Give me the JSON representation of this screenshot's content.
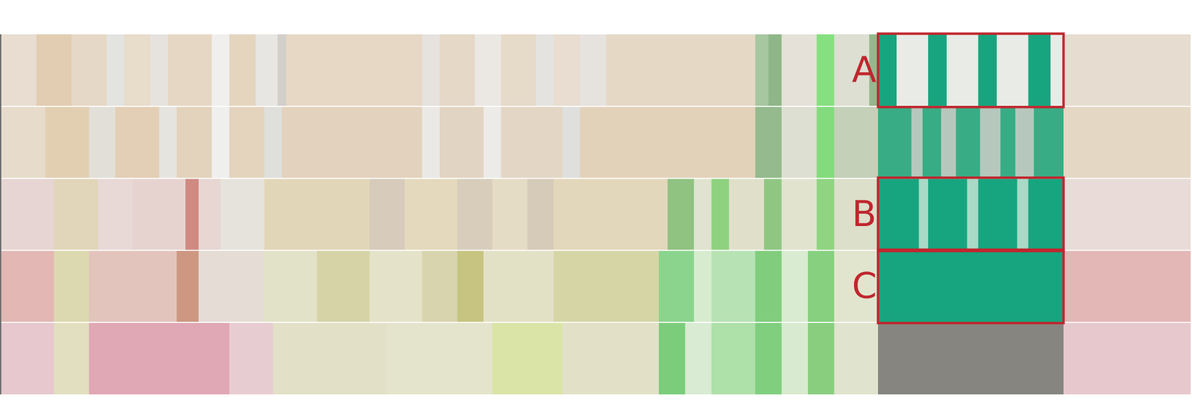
{
  "rows": [
    {
      "id": "row-1",
      "base": "#e8ddd0",
      "bands": [
        {
          "from": 0.0,
          "to": 0.04,
          "color": "#e8ddd0"
        },
        {
          "from": 0.04,
          "to": 0.08,
          "color": "#e2cdb2"
        },
        {
          "from": 0.08,
          "to": 0.12,
          "color": "#e6d8c6"
        },
        {
          "from": 0.12,
          "to": 0.14,
          "color": "#e3e3e0"
        },
        {
          "from": 0.14,
          "to": 0.17,
          "color": "#e8dccb"
        },
        {
          "from": 0.17,
          "to": 0.19,
          "color": "#e6e3de"
        },
        {
          "from": 0.19,
          "to": 0.24,
          "color": "#e6d7c4"
        },
        {
          "from": 0.24,
          "to": 0.26,
          "color": "#f0efed"
        },
        {
          "from": 0.26,
          "to": 0.29,
          "color": "#e5d5bf"
        },
        {
          "from": 0.29,
          "to": 0.315,
          "color": "#e8e6e2"
        },
        {
          "from": 0.315,
          "to": 0.325,
          "color": "#d3cfca"
        },
        {
          "from": 0.325,
          "to": 0.48,
          "color": "#e6d8c4"
        },
        {
          "from": 0.48,
          "to": 0.5,
          "color": "#e6e2de"
        },
        {
          "from": 0.5,
          "to": 0.54,
          "color": "#e5d8c7"
        },
        {
          "from": 0.54,
          "to": 0.57,
          "color": "#ebe7e3"
        },
        {
          "from": 0.57,
          "to": 0.61,
          "color": "#e6dac9"
        },
        {
          "from": 0.61,
          "to": 0.63,
          "color": "#e5e3e0"
        },
        {
          "from": 0.63,
          "to": 0.66,
          "color": "#e8ddd0"
        },
        {
          "from": 0.66,
          "to": 0.69,
          "color": "#e6e2de"
        },
        {
          "from": 0.69,
          "to": 0.86,
          "color": "#e5d9c6"
        },
        {
          "from": 0.86,
          "to": 0.875,
          "color": "#a7c7a0"
        },
        {
          "from": 0.875,
          "to": 0.89,
          "color": "#8fb688"
        },
        {
          "from": 0.89,
          "to": 0.93,
          "color": "#e5e1d8"
        },
        {
          "from": 0.93,
          "to": 0.95,
          "color": "#86e080"
        },
        {
          "from": 0.95,
          "to": 0.99,
          "color": "#dcdfd2"
        },
        {
          "from": 0.99,
          "to": 1.0,
          "color": "#93b98d"
        }
      ]
    },
    {
      "id": "row-2",
      "base": "#e6dcce",
      "bands": [
        {
          "from": 0.0,
          "to": 0.05,
          "color": "#e7dccb"
        },
        {
          "from": 0.05,
          "to": 0.1,
          "color": "#e2cfb2"
        },
        {
          "from": 0.1,
          "to": 0.13,
          "color": "#e2dfd8"
        },
        {
          "from": 0.13,
          "to": 0.18,
          "color": "#e3cfb5"
        },
        {
          "from": 0.18,
          "to": 0.2,
          "color": "#e6e4df"
        },
        {
          "from": 0.2,
          "to": 0.24,
          "color": "#e3d3bc"
        },
        {
          "from": 0.24,
          "to": 0.26,
          "color": "#efefee"
        },
        {
          "from": 0.26,
          "to": 0.3,
          "color": "#e4d4be"
        },
        {
          "from": 0.3,
          "to": 0.32,
          "color": "#dfe0dc"
        },
        {
          "from": 0.32,
          "to": 0.48,
          "color": "#e3d2bd"
        },
        {
          "from": 0.48,
          "to": 0.5,
          "color": "#ebe9e6"
        },
        {
          "from": 0.5,
          "to": 0.55,
          "color": "#e2d4c2"
        },
        {
          "from": 0.55,
          "to": 0.57,
          "color": "#ecebe8"
        },
        {
          "from": 0.57,
          "to": 0.64,
          "color": "#e3d6c4"
        },
        {
          "from": 0.64,
          "to": 0.66,
          "color": "#dfe0dd"
        },
        {
          "from": 0.66,
          "to": 0.86,
          "color": "#e3d2ba"
        },
        {
          "from": 0.86,
          "to": 0.89,
          "color": "#94ba8d"
        },
        {
          "from": 0.89,
          "to": 0.93,
          "color": "#dddfd3"
        },
        {
          "from": 0.93,
          "to": 0.95,
          "color": "#83db7d"
        },
        {
          "from": 0.95,
          "to": 1.0,
          "color": "#c4d0b7"
        }
      ]
    },
    {
      "id": "row-3",
      "base": "#e9e0d4",
      "bands": [
        {
          "from": 0.0,
          "to": 0.06,
          "color": "#e6d5d2"
        },
        {
          "from": 0.06,
          "to": 0.11,
          "color": "#e1d6b9"
        },
        {
          "from": 0.11,
          "to": 0.15,
          "color": "#e8d8d6"
        },
        {
          "from": 0.15,
          "to": 0.21,
          "color": "#e6d3cf"
        },
        {
          "from": 0.21,
          "to": 0.225,
          "color": "#d08a82"
        },
        {
          "from": 0.225,
          "to": 0.25,
          "color": "#e7d6d2"
        },
        {
          "from": 0.25,
          "to": 0.3,
          "color": "#e6e3dc"
        },
        {
          "from": 0.3,
          "to": 0.42,
          "color": "#e2d6b8"
        },
        {
          "from": 0.42,
          "to": 0.46,
          "color": "#d7ccbb"
        },
        {
          "from": 0.46,
          "to": 0.52,
          "color": "#e4d9bd"
        },
        {
          "from": 0.52,
          "to": 0.56,
          "color": "#d8cdbb"
        },
        {
          "from": 0.56,
          "to": 0.6,
          "color": "#e5dcc5"
        },
        {
          "from": 0.6,
          "to": 0.63,
          "color": "#d6cbb8"
        },
        {
          "from": 0.63,
          "to": 0.76,
          "color": "#e3d7bb"
        },
        {
          "from": 0.76,
          "to": 0.79,
          "color": "#90c281"
        },
        {
          "from": 0.79,
          "to": 0.81,
          "color": "#dfe3cf"
        },
        {
          "from": 0.81,
          "to": 0.83,
          "color": "#8ed27f"
        },
        {
          "from": 0.83,
          "to": 0.87,
          "color": "#e0e0ca"
        },
        {
          "from": 0.87,
          "to": 0.89,
          "color": "#8fc782"
        },
        {
          "from": 0.89,
          "to": 0.93,
          "color": "#e2e3cf"
        },
        {
          "from": 0.93,
          "to": 0.95,
          "color": "#90d481"
        },
        {
          "from": 0.95,
          "to": 1.0,
          "color": "#dcdfc9"
        }
      ]
    },
    {
      "id": "row-4",
      "base": "#e6e2cd",
      "bands": [
        {
          "from": 0.0,
          "to": 0.06,
          "color": "#e2b7b4"
        },
        {
          "from": 0.06,
          "to": 0.1,
          "color": "#dcd9b0"
        },
        {
          "from": 0.1,
          "to": 0.2,
          "color": "#e2c4bc"
        },
        {
          "from": 0.2,
          "to": 0.225,
          "color": "#cd9782"
        },
        {
          "from": 0.225,
          "to": 0.3,
          "color": "#e6dcd6"
        },
        {
          "from": 0.3,
          "to": 0.36,
          "color": "#e2e2c8"
        },
        {
          "from": 0.36,
          "to": 0.42,
          "color": "#d6d3a7"
        },
        {
          "from": 0.42,
          "to": 0.48,
          "color": "#e4e2c8"
        },
        {
          "from": 0.48,
          "to": 0.52,
          "color": "#d8d5ae"
        },
        {
          "from": 0.52,
          "to": 0.55,
          "color": "#c6c480"
        },
        {
          "from": 0.55,
          "to": 0.63,
          "color": "#e2e1c6"
        },
        {
          "from": 0.63,
          "to": 0.75,
          "color": "#d6d5a6"
        },
        {
          "from": 0.75,
          "to": 0.79,
          "color": "#8bd48d"
        },
        {
          "from": 0.79,
          "to": 0.81,
          "color": "#d7eccf"
        },
        {
          "from": 0.81,
          "to": 0.86,
          "color": "#b7e2b3"
        },
        {
          "from": 0.86,
          "to": 0.89,
          "color": "#7fcd7d"
        },
        {
          "from": 0.89,
          "to": 0.92,
          "color": "#d9ebd1"
        },
        {
          "from": 0.92,
          "to": 0.95,
          "color": "#86d07f"
        },
        {
          "from": 0.95,
          "to": 1.0,
          "color": "#e1e5ce"
        }
      ]
    },
    {
      "id": "row-5",
      "base": "#e5e3d0",
      "bands": [
        {
          "from": 0.0,
          "to": 0.06,
          "color": "#e6c8ce"
        },
        {
          "from": 0.06,
          "to": 0.1,
          "color": "#e1dfbf"
        },
        {
          "from": 0.1,
          "to": 0.26,
          "color": "#e0a7b4"
        },
        {
          "from": 0.26,
          "to": 0.31,
          "color": "#e7cdd2"
        },
        {
          "from": 0.31,
          "to": 0.44,
          "color": "#e2e0c6"
        },
        {
          "from": 0.44,
          "to": 0.56,
          "color": "#e4e4cc"
        },
        {
          "from": 0.56,
          "to": 0.64,
          "color": "#d9e4a6"
        },
        {
          "from": 0.64,
          "to": 0.75,
          "color": "#e2e1c7"
        },
        {
          "from": 0.75,
          "to": 0.78,
          "color": "#7bcd7b"
        },
        {
          "from": 0.78,
          "to": 0.81,
          "color": "#d9ebd2"
        },
        {
          "from": 0.81,
          "to": 0.86,
          "color": "#aee0a9"
        },
        {
          "from": 0.86,
          "to": 0.89,
          "color": "#7fcf7e"
        },
        {
          "from": 0.89,
          "to": 0.92,
          "color": "#d8ead0"
        },
        {
          "from": 0.92,
          "to": 0.95,
          "color": "#89ce7f"
        },
        {
          "from": 0.95,
          "to": 1.0,
          "color": "#e0e3cd"
        }
      ]
    }
  ],
  "highlight_rows": [
    {
      "id": "row-1",
      "fill": "#17a57f",
      "stripes": [
        [
          0.0,
          0.1
        ],
        [
          0.27,
          0.37
        ],
        [
          0.54,
          0.64
        ],
        [
          0.81,
          0.93
        ]
      ],
      "stripe_bg": "#e9ebe6"
    },
    {
      "id": "row-2",
      "fill": "#38ad85",
      "stripes": [
        [
          0.0,
          0.18
        ],
        [
          0.24,
          0.34
        ],
        [
          0.42,
          0.55
        ],
        [
          0.66,
          0.74
        ],
        [
          0.84,
          1.0
        ]
      ],
      "stripe_bg": "#b6c8bd"
    },
    {
      "id": "row-3",
      "fill": "#17a57f",
      "stripes": [
        [
          0.0,
          0.22
        ],
        [
          0.27,
          0.48
        ],
        [
          0.54,
          0.75
        ],
        [
          0.81,
          1.0
        ]
      ],
      "stripe_bg": "#a9d9c7"
    },
    {
      "id": "row-4",
      "fill": "#17a57f",
      "stripes": [
        [
          0.0,
          1.0
        ]
      ],
      "stripe_bg": "#17a57f"
    },
    {
      "id": "row-5",
      "fill": "#868580",
      "stripes": [
        [
          0.0,
          1.0
        ]
      ],
      "stripe_bg": "#868580"
    }
  ],
  "right_tail": [
    {
      "id": "row-1",
      "color": "#e6ddd0"
    },
    {
      "id": "row-2",
      "color": "#e4d7c4"
    },
    {
      "id": "row-3",
      "color": "#e8dbd8"
    },
    {
      "id": "row-4",
      "color": "#e3b7b6"
    },
    {
      "id": "row-5",
      "color": "#e7c8cd"
    }
  ],
  "callouts": [
    {
      "label": "A",
      "rows": [
        0,
        0
      ]
    },
    {
      "label": "B",
      "rows": [
        2,
        2
      ]
    },
    {
      "label": "C",
      "rows": [
        3,
        3
      ]
    }
  ],
  "colors": {
    "callout": "#c0262d",
    "divider": "#ffffff",
    "left_axis": "#444444"
  }
}
